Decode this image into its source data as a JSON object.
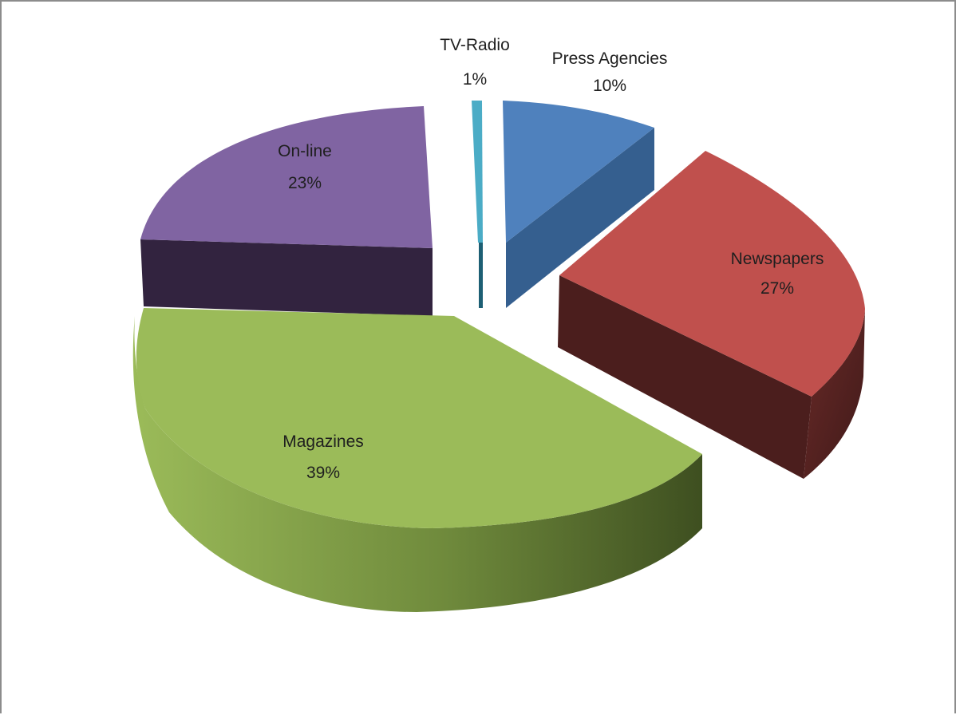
{
  "chart_data": {
    "type": "pie",
    "three_d": true,
    "exploded": true,
    "slices": [
      {
        "label": "Press Agencies",
        "value": 10,
        "value_text": "10%",
        "color": "#4f81bd"
      },
      {
        "label": "Newspapers",
        "value": 27,
        "value_text": "27%",
        "color": "#c0504d"
      },
      {
        "label": "Magazines",
        "value": 39,
        "value_text": "39%",
        "color": "#9bbb59"
      },
      {
        "label": "On-line",
        "value": 23,
        "value_text": "23%",
        "color": "#8064a2"
      },
      {
        "label": "TV-Radio",
        "value": 1,
        "value_text": "1%",
        "color": "#4bacc6"
      }
    ],
    "legend": "none",
    "title": ""
  }
}
